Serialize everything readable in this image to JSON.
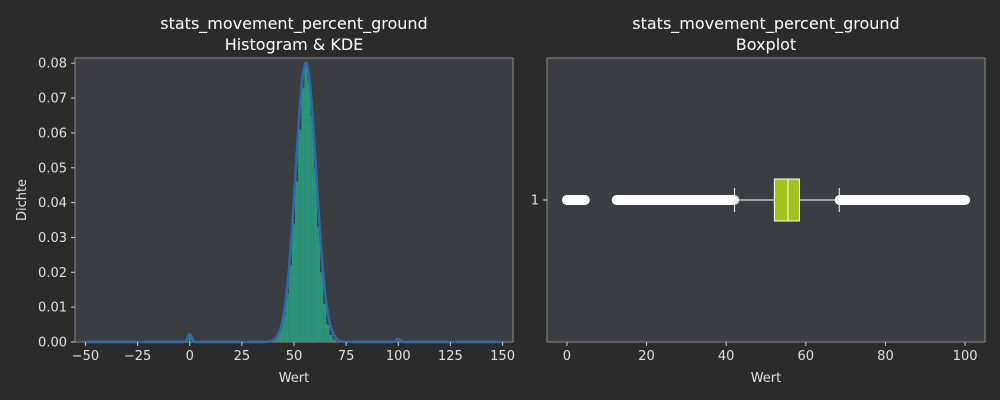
{
  "chart_data": [
    {
      "type": "histogram",
      "title_line1": "stats_movement_percent_ground",
      "title_line2": "Histogram & KDE",
      "xlabel": "Wert",
      "ylabel": "Dichte",
      "xlim": [
        -55,
        155
      ],
      "ylim": [
        0,
        0.0815
      ],
      "xticks": [
        -50,
        -25,
        0,
        25,
        50,
        75,
        100,
        125,
        150
      ],
      "yticks": [
        0.0,
        0.01,
        0.02,
        0.03,
        0.04,
        0.05,
        0.06,
        0.07,
        0.08
      ],
      "ytick_labels": [
        "0.00",
        "0.01",
        "0.02",
        "0.03",
        "0.04",
        "0.05",
        "0.06",
        "0.07",
        "0.08"
      ],
      "bins": [
        {
          "x0": -0.5,
          "x1": 0.5,
          "density": 0.0015
        },
        {
          "x0": 40,
          "x1": 41.5,
          "density": 0.0008
        },
        {
          "x0": 41.5,
          "x1": 43,
          "density": 0.002
        },
        {
          "x0": 43,
          "x1": 44.5,
          "density": 0.004
        },
        {
          "x0": 44.5,
          "x1": 46,
          "density": 0.008
        },
        {
          "x0": 46,
          "x1": 47.5,
          "density": 0.014
        },
        {
          "x0": 47.5,
          "x1": 49,
          "density": 0.022
        },
        {
          "x0": 49,
          "x1": 50.5,
          "density": 0.034
        },
        {
          "x0": 50.5,
          "x1": 52,
          "density": 0.046
        },
        {
          "x0": 52,
          "x1": 53.5,
          "density": 0.061
        },
        {
          "x0": 53.5,
          "x1": 55,
          "density": 0.073
        },
        {
          "x0": 55,
          "x1": 56.5,
          "density": 0.079
        },
        {
          "x0": 56.5,
          "x1": 58,
          "density": 0.075
        },
        {
          "x0": 58,
          "x1": 59.5,
          "density": 0.065
        },
        {
          "x0": 59.5,
          "x1": 61,
          "density": 0.05
        },
        {
          "x0": 61,
          "x1": 62.5,
          "density": 0.033
        },
        {
          "x0": 62.5,
          "x1": 64,
          "density": 0.02
        },
        {
          "x0": 64,
          "x1": 65.5,
          "density": 0.011
        },
        {
          "x0": 65.5,
          "x1": 67,
          "density": 0.005
        },
        {
          "x0": 67,
          "x1": 68.5,
          "density": 0.002
        },
        {
          "x0": 68.5,
          "x1": 70,
          "density": 0.0008
        }
      ],
      "kde": {
        "x_range": [
          -50,
          150
        ],
        "components": [
          {
            "weight": 0.993,
            "mean": 55.7,
            "sd": 4.95
          },
          {
            "weight": 0.005,
            "mean": 0,
            "sd": 0.9
          },
          {
            "weight": 0.002,
            "mean": 100,
            "sd": 0.9
          }
        ]
      },
      "colors": {
        "bars": "#2a9d82",
        "kde": "#2f6aa8",
        "plot_bg": "#3a3e42"
      }
    },
    {
      "type": "boxplot",
      "title_line1": "stats_movement_percent_ground",
      "title_line2": "Boxplot",
      "xlabel": "Wert",
      "xlim": [
        -5,
        105
      ],
      "xticks": [
        0,
        20,
        40,
        60,
        80,
        100
      ],
      "category_label": "1",
      "box": {
        "whisker_low": 42.1,
        "q1": 52.1,
        "median": 55.5,
        "q3": 58.4,
        "whisker_high": 68.4
      },
      "outlier_ranges": [
        [
          0,
          4.5
        ],
        [
          12.5,
          42
        ],
        [
          68.5,
          100
        ]
      ],
      "colors": {
        "box": "#a4c21e",
        "outliers": "#ffffff",
        "plot_bg": "#3a3e42"
      }
    }
  ]
}
